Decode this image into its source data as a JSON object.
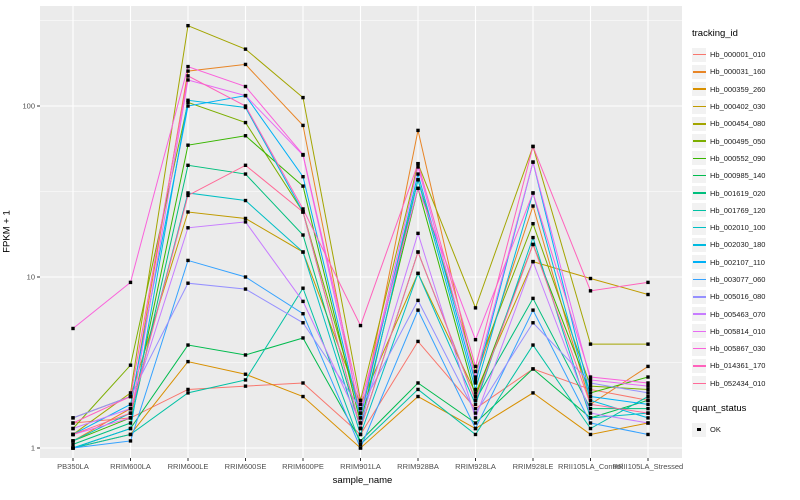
{
  "figure": {
    "background": "#FFFFFF",
    "panel_background": "#EBEBEB",
    "gridline_color": "#FFFFFF",
    "axis_text_color": "#4D4D4D",
    "tick_color": "#333333"
  },
  "chart_data": {
    "type": "line",
    "title": "",
    "xlabel": "sample_name",
    "ylabel": "FPKM + 1",
    "y_scale": "log10",
    "y_ticks": [
      1,
      10,
      100
    ],
    "y_minor_ticks": [
      3.1623,
      31.623,
      316.23
    ],
    "ylim": [
      0.88,
      372
    ],
    "grid": true,
    "legend_position": "right",
    "point_shape": "filled-square",
    "point_color": "#000000",
    "categories": [
      "PB350LA",
      "RRIM600LA",
      "RRIM600LE",
      "RRIM600SE",
      "RRIM600PE",
      "RRIM901LA",
      "RRIM928BA",
      "RRIM928LA",
      "RRIM928LE",
      "RRII105LA_Control",
      "RRII105LA_Stressed"
    ],
    "series": [
      {
        "name": "Hb_000001_010",
        "color": "#F8766D",
        "values": [
          1.4,
          1.5,
          2.2,
          2.3,
          2.4,
          1.2,
          4.2,
          1.7,
          2.9,
          2.2,
          1.9
        ]
      },
      {
        "name": "Hb_000031_160",
        "color": "#E88526",
        "values": [
          1.1,
          1.7,
          160,
          175,
          77,
          1.5,
          72,
          2.5,
          26,
          1.8,
          3.0
        ]
      },
      {
        "name": "Hb_000359_260",
        "color": "#D89000",
        "values": [
          1.0,
          1.2,
          3.2,
          2.7,
          2.0,
          1.0,
          2.0,
          1.3,
          2.1,
          1.2,
          1.4
        ]
      },
      {
        "name": "Hb_000402_030",
        "color": "#C09B00",
        "values": [
          1.5,
          2.0,
          24,
          22,
          14,
          1.8,
          10.5,
          2.1,
          12.3,
          9.8,
          7.9
        ]
      },
      {
        "name": "Hb_000454_080",
        "color": "#A3A500",
        "values": [
          1.2,
          2.1,
          295,
          215,
          112,
          1.9,
          46,
          6.6,
          58,
          4.05,
          4.05
        ]
      },
      {
        "name": "Hb_000495_050",
        "color": "#7CAE00",
        "values": [
          1.3,
          3.05,
          105,
          80,
          24,
          1.6,
          37,
          2.8,
          20.5,
          2.3,
          2.2
        ]
      },
      {
        "name": "Hb_000552_090",
        "color": "#39B600",
        "values": [
          1.1,
          1.5,
          59,
          67,
          34,
          1.4,
          33,
          2.0,
          15.5,
          2.1,
          2.6
        ]
      },
      {
        "name": "Hb_000985_140",
        "color": "#00BB4E",
        "values": [
          1.0,
          1.3,
          4.0,
          3.5,
          4.4,
          1.1,
          2.4,
          1.4,
          2.9,
          1.5,
          1.9
        ]
      },
      {
        "name": "Hb_001619_020",
        "color": "#00BF7D",
        "values": [
          1.05,
          1.4,
          45,
          40,
          17.6,
          1.3,
          14,
          1.9,
          7.5,
          1.7,
          1.7
        ]
      },
      {
        "name": "Hb_001769_120",
        "color": "#00C1A3",
        "values": [
          1.0,
          1.2,
          2.1,
          2.5,
          8.6,
          1.05,
          2.2,
          1.2,
          4.0,
          1.3,
          2.0
        ]
      },
      {
        "name": "Hb_002010_100",
        "color": "#00BFC4",
        "values": [
          1.1,
          1.6,
          31,
          28,
          14,
          1.2,
          10.5,
          1.8,
          17,
          1.5,
          1.6
        ]
      },
      {
        "name": "Hb_002030_180",
        "color": "#00BAE0",
        "values": [
          1.0,
          1.3,
          108,
          98,
          24,
          1.3,
          37,
          2.2,
          31,
          1.9,
          1.5
        ]
      },
      {
        "name": "Hb_002107_110",
        "color": "#00B0F6",
        "values": [
          1.2,
          1.8,
          100,
          115,
          38.6,
          1.5,
          40,
          2.4,
          47,
          2.0,
          1.8
        ]
      },
      {
        "name": "Hb_003077_060",
        "color": "#35A2FF",
        "values": [
          1.0,
          1.1,
          12.5,
          10,
          6.1,
          1.0,
          6.4,
          1.3,
          6.4,
          1.4,
          1.2
        ]
      },
      {
        "name": "Hb_005016_080",
        "color": "#9590FF",
        "values": [
          1.5,
          2.0,
          9.2,
          8.5,
          5.4,
          1.7,
          7.3,
          1.6,
          5.4,
          2.4,
          2.1
        ]
      },
      {
        "name": "Hb_005463_070",
        "color": "#C77CFF",
        "values": [
          1.3,
          1.7,
          19.4,
          21,
          7.2,
          1.4,
          18,
          1.5,
          12.3,
          1.6,
          1.4
        ]
      },
      {
        "name": "Hb_005814_010",
        "color": "#E76BF3",
        "values": [
          1.2,
          1.5,
          142,
          115,
          51.6,
          1.6,
          44,
          2.6,
          47,
          2.5,
          2.3
        ]
      },
      {
        "name": "Hb_005867_030",
        "color": "#FA62DB",
        "values": [
          5.0,
          9.3,
          170,
          130,
          52,
          1.8,
          33,
          4.3,
          31,
          2.6,
          2.4
        ]
      },
      {
        "name": "Hb_014361_170",
        "color": "#FF62BC",
        "values": [
          1.4,
          2.0,
          150,
          100,
          25,
          5.2,
          46,
          3.0,
          58,
          8.3,
          9.3
        ]
      },
      {
        "name": "Hb_052434_010",
        "color": "#FF6A98",
        "values": [
          1.2,
          1.6,
          30,
          45,
          24,
          1.3,
          14,
          1.9,
          15.5,
          1.8,
          1.6
        ]
      }
    ]
  },
  "legend": {
    "tracking_title": "tracking_id",
    "quant_title": "quant_status",
    "quant_items": [
      {
        "label": "OK",
        "marker": "black-square"
      }
    ]
  }
}
